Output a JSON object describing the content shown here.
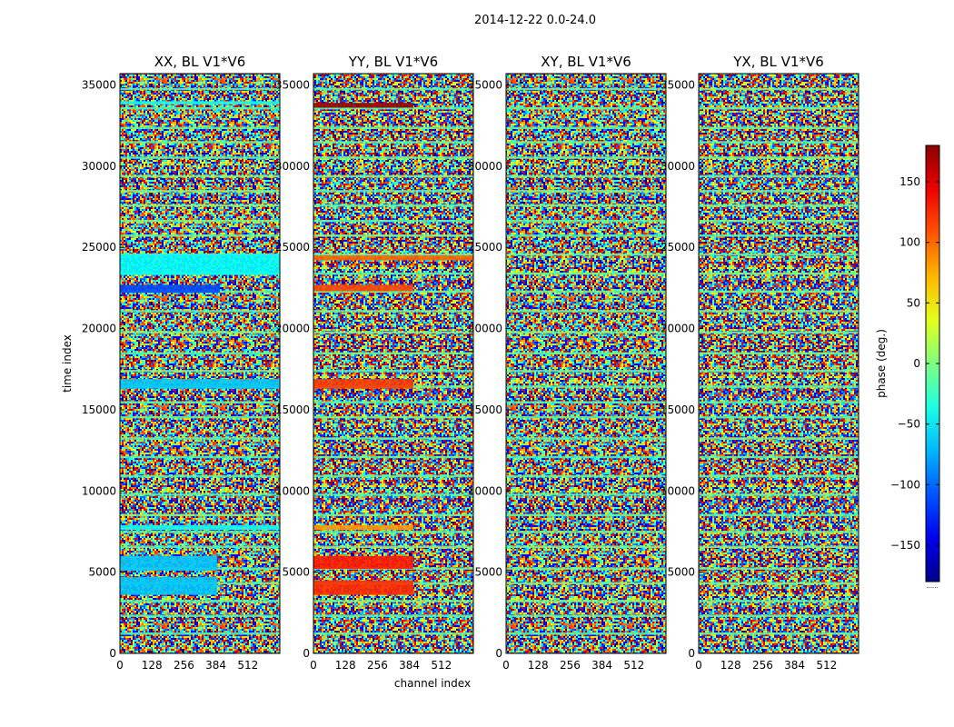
{
  "figure": {
    "suptitle": "2014-12-22 0.0-24.0"
  },
  "chart_data": {
    "type": "heatmap",
    "title": "2014-12-22 0.0-24.0",
    "xlabel": "channel index",
    "ylabel": "time index",
    "xlim": [
      0,
      640
    ],
    "ylim": [
      0,
      35700
    ],
    "xticks": [
      0,
      128,
      256,
      384,
      512
    ],
    "yticks": [
      0,
      5000,
      10000,
      15000,
      20000,
      25000,
      30000,
      35000
    ],
    "colorbar": {
      "label": "phase (deg.)",
      "range": [
        -180,
        180
      ],
      "ticks": [
        -150,
        -100,
        -50,
        0,
        50,
        100,
        150
      ],
      "tick_labels": [
        "−150",
        "−100",
        "−50",
        "0",
        "50",
        "100",
        "150"
      ],
      "colormap": "jet",
      "footer": "......"
    },
    "panels": [
      {
        "title": "XX, BL V1*V6",
        "bands": [
          {
            "y0": 3600,
            "y1": 4700,
            "x_end": 390,
            "phase": -65
          },
          {
            "y0": 5100,
            "y1": 6000,
            "x_end": 390,
            "phase": -65
          },
          {
            "y0": 7600,
            "y1": 7900,
            "x_end": 640,
            "phase": -40
          },
          {
            "y0": 16300,
            "y1": 16900,
            "x_end": 640,
            "phase": -65
          },
          {
            "y0": 22200,
            "y1": 22700,
            "x_end": 400,
            "phase": -110
          },
          {
            "y0": 23300,
            "y1": 24600,
            "x_end": 640,
            "phase": -45
          },
          {
            "y0": 33800,
            "y1": 34000,
            "x_end": 640,
            "phase": -40
          }
        ]
      },
      {
        "title": "YY, BL V1*V6",
        "bands": [
          {
            "y0": 3600,
            "y1": 4500,
            "x_end": 400,
            "phase": 120
          },
          {
            "y0": 5200,
            "y1": 6000,
            "x_end": 400,
            "phase": 125
          },
          {
            "y0": 7600,
            "y1": 7900,
            "x_end": 400,
            "phase": 80
          },
          {
            "y0": 16300,
            "y1": 16900,
            "x_end": 400,
            "phase": 115
          },
          {
            "y0": 22300,
            "y1": 22700,
            "x_end": 400,
            "phase": 110
          },
          {
            "y0": 24200,
            "y1": 24500,
            "x_end": 640,
            "phase": 100
          },
          {
            "y0": 33600,
            "y1": 33900,
            "x_end": 400,
            "phase": 170
          }
        ]
      },
      {
        "title": "XY, BL V1*V6",
        "bands": []
      },
      {
        "title": "YX, BL V1*V6",
        "bands": []
      }
    ]
  }
}
